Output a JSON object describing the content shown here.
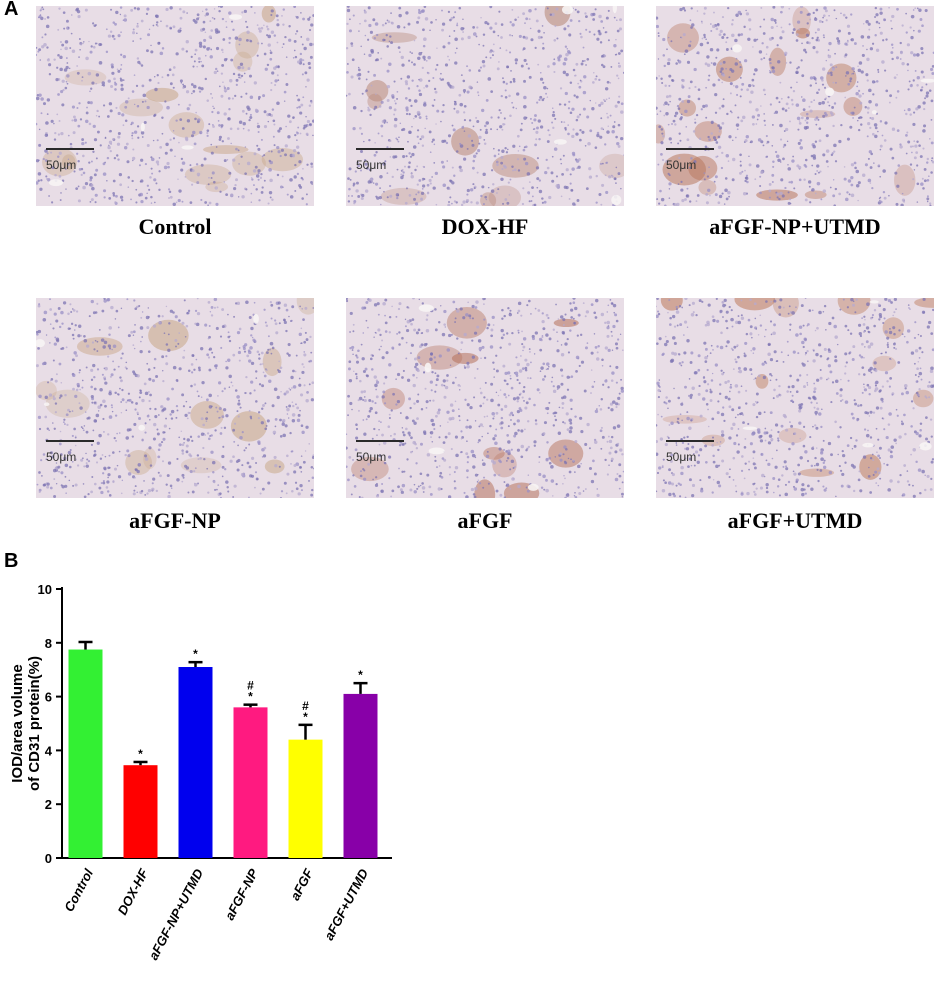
{
  "panel_a": {
    "letter": "A",
    "images": [
      {
        "caption": "Control",
        "scale_label": "50μm",
        "stain": "#c7a585",
        "density": 0.55
      },
      {
        "caption": "DOX-HF",
        "scale_label": "50μm",
        "stain": "#b98a7a",
        "density": 0.25
      },
      {
        "caption": "aFGF-NP+UTMD",
        "scale_label": "50μm",
        "stain": "#b8785e",
        "density": 0.75
      },
      {
        "caption": "aFGF-NP",
        "scale_label": "50μm",
        "stain": "#c9a98a",
        "density": 0.45
      },
      {
        "caption": "aFGF",
        "scale_label": "50μm",
        "stain": "#b5705a",
        "density": 0.35
      },
      {
        "caption": "aFGF+UTMD",
        "scale_label": "50μm",
        "stain": "#c08264",
        "density": 0.6
      }
    ]
  },
  "panel_b": {
    "letter": "B"
  },
  "chart_data": {
    "type": "bar",
    "categories": [
      "Control",
      "DOX-HF",
      "aFGF-NP+UTMD",
      "aFGF-NP",
      "aFGF",
      "aFGF+UTMD"
    ],
    "values": [
      7.75,
      3.45,
      7.1,
      5.6,
      4.4,
      6.1
    ],
    "errors": [
      0.28,
      0.12,
      0.18,
      0.1,
      0.55,
      0.4
    ],
    "colors": [
      "#33f033",
      "#ff0000",
      "#0000ee",
      "#ff1a80",
      "#ffff00",
      "#8800a8"
    ],
    "annotations": [
      "",
      "*",
      "*",
      "#\n*",
      "#\n*",
      "*"
    ],
    "ylabel_line1": "IOD/area volume",
    "ylabel_line2": "of CD31 protein(%)",
    "ylim": [
      0,
      10
    ],
    "yticks": [
      0,
      2,
      4,
      6,
      8,
      10
    ]
  }
}
